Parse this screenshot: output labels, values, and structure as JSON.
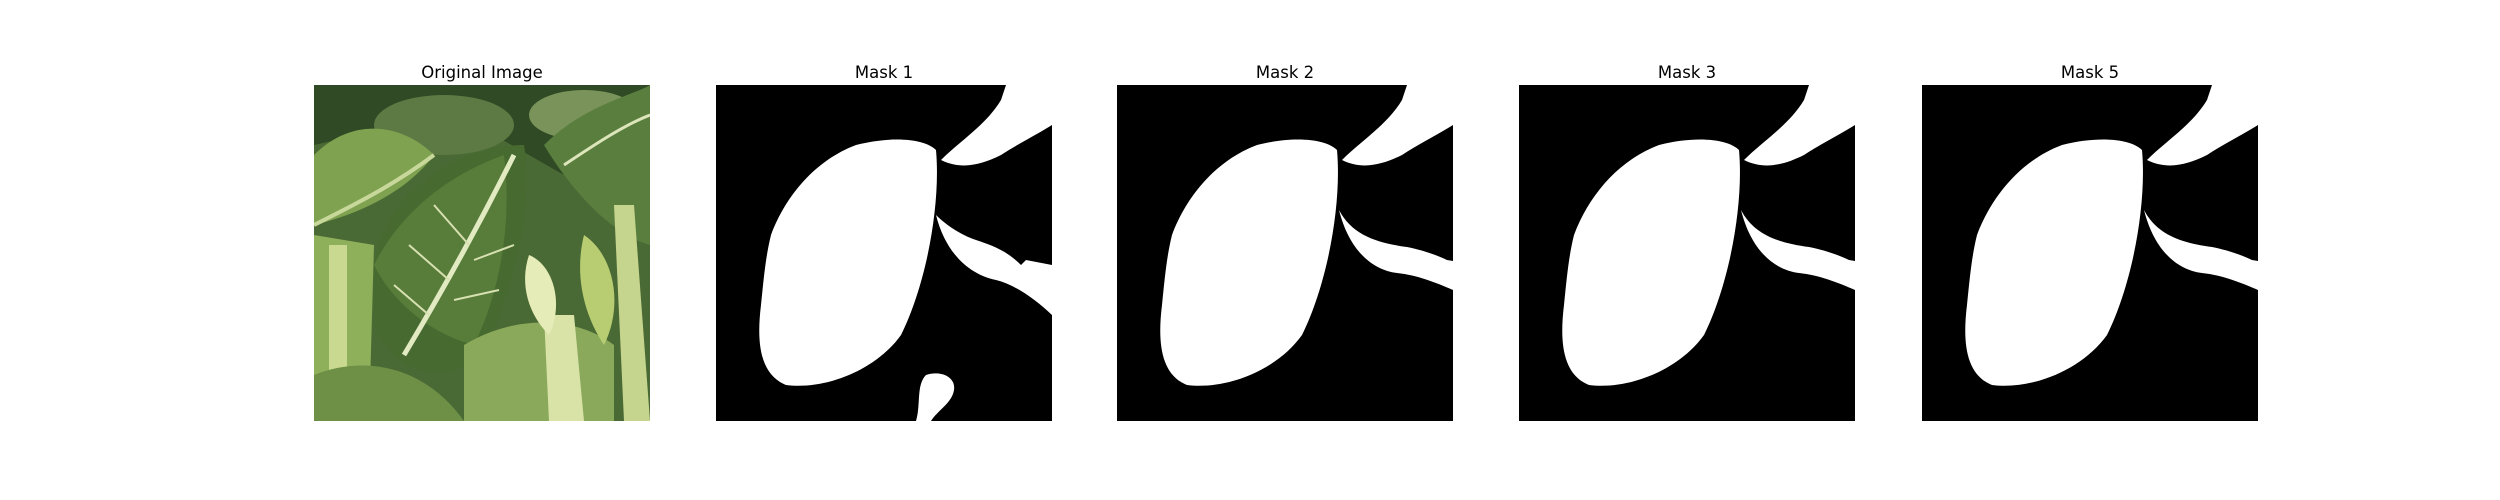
{
  "panels": [
    {
      "title": "Original Image",
      "kind": "photo",
      "description": "close-up of bok choy leaves"
    },
    {
      "title": "Mask 1",
      "kind": "mask",
      "variant": "with-lower-blob"
    },
    {
      "title": "Mask 2",
      "kind": "mask",
      "variant": "clean"
    },
    {
      "title": "Mask 3",
      "kind": "mask",
      "variant": "clean"
    },
    {
      "title": "Mask 5",
      "kind": "mask",
      "variant": "clean"
    }
  ],
  "colors": {
    "background": "#ffffff",
    "mask_foreground": "#ffffff",
    "mask_background": "#000000",
    "leaf_dark": "#3d5a2b",
    "leaf_mid": "#6f8f45",
    "leaf_light": "#b9cf7e",
    "stem": "#dfe6b6"
  }
}
